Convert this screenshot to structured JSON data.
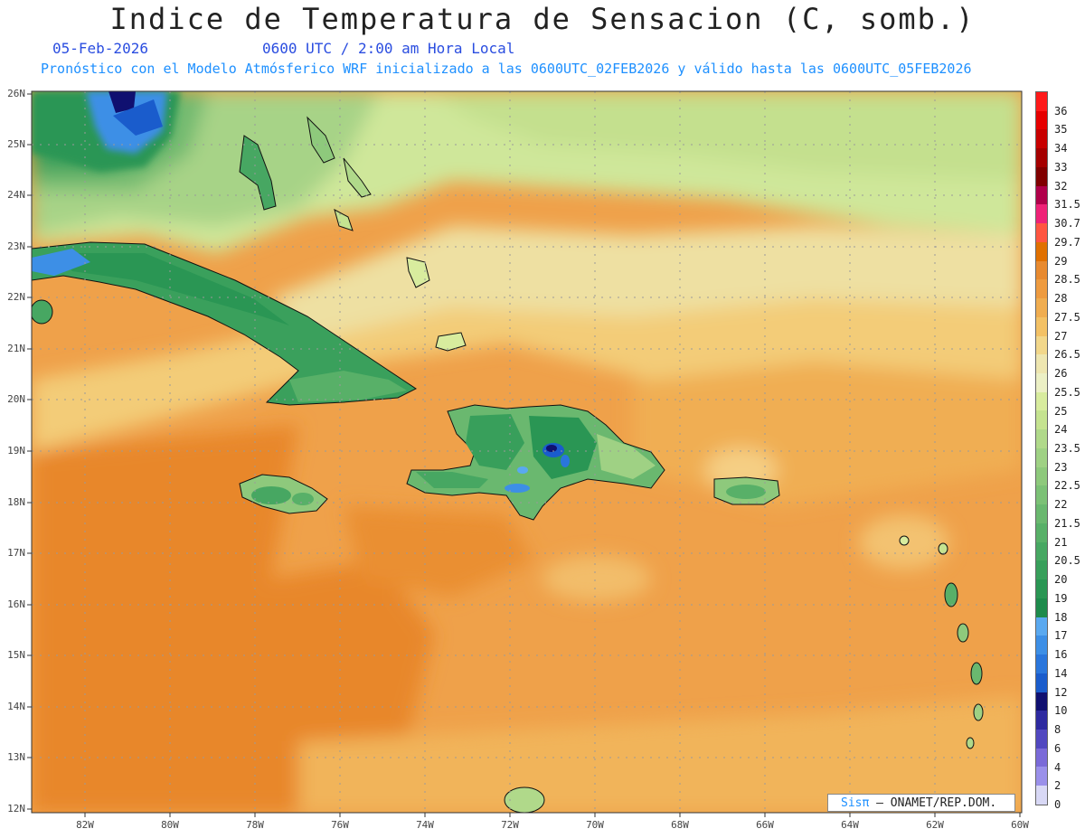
{
  "header": {
    "title": "Indice de Temperatura de Sensacion (C, somb.)",
    "date": "05-Feb-2026",
    "time": "0600 UTC / 2:00 am Hora Local",
    "description": "Pronóstico con el Modelo Atmósferico WRF inicializado a las 0600UTC_02FEB2026 y válido hasta las  0600UTC_05FEB2026"
  },
  "axes": {
    "lat_labels": [
      "26N",
      "25N",
      "24N",
      "23N",
      "22N",
      "21N",
      "20N",
      "19N",
      "18N",
      "17N",
      "16N",
      "15N",
      "14N",
      "13N",
      "12N"
    ],
    "lon_labels": [
      "82W",
      "80W",
      "78W",
      "76W",
      "74W",
      "72W",
      "70W",
      "68W",
      "66W",
      "64W",
      "62W",
      "60W"
    ]
  },
  "colorbar": {
    "levels": [
      {
        "label": "36",
        "color": "#ff1a1a"
      },
      {
        "label": "35",
        "color": "#e60000"
      },
      {
        "label": "34",
        "color": "#c80000"
      },
      {
        "label": "33",
        "color": "#a50000"
      },
      {
        "label": "32",
        "color": "#800000"
      },
      {
        "label": "31.5",
        "color": "#b0004a"
      },
      {
        "label": "30.7",
        "color": "#ee2277"
      },
      {
        "label": "29.7",
        "color": "#ff5540"
      },
      {
        "label": "29",
        "color": "#e07000"
      },
      {
        "label": "28.5",
        "color": "#e88a30"
      },
      {
        "label": "28",
        "color": "#ee9b40"
      },
      {
        "label": "27.5",
        "color": "#f0ad50"
      },
      {
        "label": "27",
        "color": "#f3c165"
      },
      {
        "label": "26.5",
        "color": "#f2d78a"
      },
      {
        "label": "26",
        "color": "#eee6b0"
      },
      {
        "label": "25.5",
        "color": "#ecf0c5"
      },
      {
        "label": "25",
        "color": "#d8ec9e"
      },
      {
        "label": "24",
        "color": "#c5e390"
      },
      {
        "label": "23.5",
        "color": "#b0d98a"
      },
      {
        "label": "23",
        "color": "#9fd184"
      },
      {
        "label": "22.5",
        "color": "#8ec97c"
      },
      {
        "label": "22",
        "color": "#7cc176"
      },
      {
        "label": "21.5",
        "color": "#6ab86f"
      },
      {
        "label": "21",
        "color": "#58b068"
      },
      {
        "label": "20.5",
        "color": "#47a762"
      },
      {
        "label": "20",
        "color": "#389f5b"
      },
      {
        "label": "19",
        "color": "#2a9654"
      },
      {
        "label": "18",
        "color": "#1e8b4c"
      },
      {
        "label": "17",
        "color": "#5aa9f0"
      },
      {
        "label": "16",
        "color": "#3d8fe6"
      },
      {
        "label": "14",
        "color": "#2a76dc"
      },
      {
        "label": "12",
        "color": "#1a5ccc"
      },
      {
        "label": "10",
        "color": "#101070"
      },
      {
        "label": "8",
        "color": "#2e2aa0"
      },
      {
        "label": "6",
        "color": "#5148c0"
      },
      {
        "label": "4",
        "color": "#7a6ad8"
      },
      {
        "label": "2",
        "color": "#9a90ea"
      },
      {
        "label": "0",
        "color": "#d8d8f5"
      }
    ]
  },
  "credit": {
    "brand": "Sisπ",
    "text": "– ONAMET/REP.DOM."
  }
}
